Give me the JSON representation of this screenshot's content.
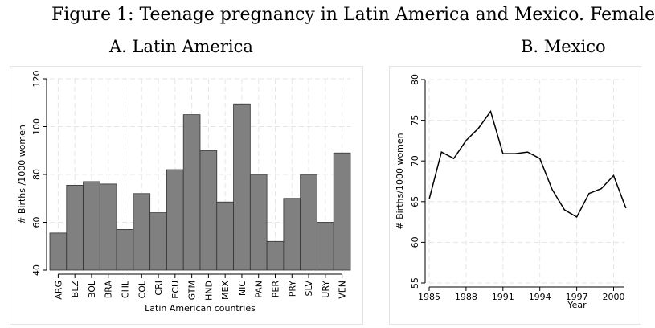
{
  "figure": {
    "title": "Figure 1: Teenage pregnancy in Latin America and Mexico. Female"
  },
  "chart_data": [
    {
      "panel_title": "A. Latin America",
      "type": "bar",
      "xlabel": "Latin American countries",
      "ylabel": "# Births /1000 women",
      "ylim": [
        40,
        120
      ],
      "yticks": [
        40,
        60,
        80,
        100,
        120
      ],
      "grid": true,
      "color": "#808080",
      "categories": [
        "ARG",
        "BLZ",
        "BOL",
        "BRA",
        "CHL",
        "COL",
        "CRI",
        "ECU",
        "GTM",
        "HND",
        "MEX",
        "NIC",
        "PAN",
        "PER",
        "PRY",
        "SLV",
        "URY",
        "VEN"
      ],
      "values": [
        55.5,
        75.5,
        77,
        76,
        57,
        72,
        64,
        82,
        105,
        90,
        68.5,
        109.5,
        80,
        52,
        70,
        80,
        60,
        89
      ]
    },
    {
      "panel_title": "B. Mexico",
      "type": "line",
      "xlabel": "Year",
      "ylabel": "# Births/1000 women",
      "ylim": [
        55,
        80
      ],
      "yticks": [
        55,
        60,
        65,
        70,
        75,
        80
      ],
      "xticks": [
        1985,
        1988,
        1991,
        1994,
        1997,
        2000
      ],
      "grid": true,
      "color": "#000000",
      "x": [
        1985,
        1986,
        1987,
        1988,
        1989,
        1990,
        1991,
        1992,
        1993,
        1994,
        1995,
        1996,
        1997,
        1998,
        1999,
        2000,
        2001
      ],
      "y": [
        65.3,
        71.1,
        70.3,
        72.5,
        74,
        76.1,
        70.9,
        70.9,
        71.1,
        70.3,
        66.5,
        64,
        63.1,
        66,
        66.6,
        68.2,
        64.2
      ]
    }
  ]
}
